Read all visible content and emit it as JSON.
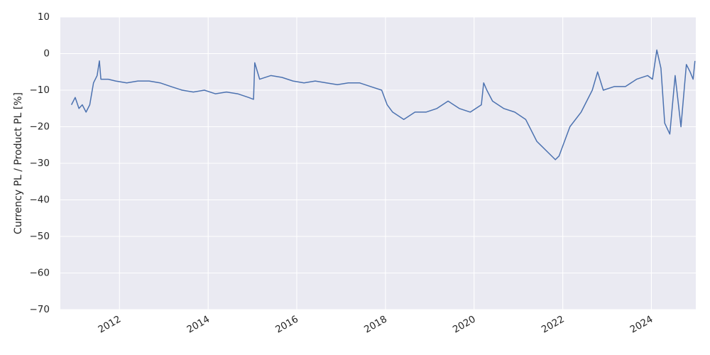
{
  "chart_data": {
    "type": "line",
    "title": "",
    "xlabel": "",
    "ylabel": "Currency PL / Product PL [%]",
    "xlim": [
      "2010-09-01",
      "2025-01-01"
    ],
    "ylim": [
      -70,
      10
    ],
    "grid": true,
    "y_ticks": [
      10,
      0,
      -10,
      -20,
      -30,
      -40,
      -50,
      -60,
      -70
    ],
    "y_tick_labels": [
      "10",
      "0",
      "−10",
      "−20",
      "−30",
      "−40",
      "−50",
      "−60",
      "−70"
    ],
    "x_ticks": [
      "2012-01-01",
      "2014-01-01",
      "2016-01-01",
      "2018-01-01",
      "2020-01-01",
      "2022-01-01",
      "2024-01-01"
    ],
    "x_tick_labels": [
      "2012",
      "2014",
      "2016",
      "2018",
      "2020",
      "2022",
      "2024"
    ],
    "colors": {
      "background": "#eaeaf2",
      "grid": "#ffffff",
      "series": "#4c72b0",
      "text": "#262626"
    },
    "series": [
      {
        "x": [
          "2010-12-01",
          "2011-01-01",
          "2011-02-01",
          "2011-03-01",
          "2011-04-01",
          "2011-05-01",
          "2011-06-01",
          "2011-07-01",
          "2011-07-20",
          "2011-08-01",
          "2011-09-01",
          "2011-10-01",
          "2011-12-01",
          "2012-03-01",
          "2012-06-01",
          "2012-09-01",
          "2012-12-01",
          "2013-03-01",
          "2013-06-01",
          "2013-09-01",
          "2013-12-01",
          "2014-03-01",
          "2014-06-01",
          "2014-09-01",
          "2014-12-01",
          "2015-01-10",
          "2015-01-20",
          "2015-03-01",
          "2015-06-01",
          "2015-09-01",
          "2015-12-01",
          "2016-03-01",
          "2016-06-01",
          "2016-09-01",
          "2016-12-01",
          "2017-03-01",
          "2017-06-01",
          "2017-09-01",
          "2017-12-01",
          "2018-01-15",
          "2018-03-01",
          "2018-06-01",
          "2018-09-01",
          "2018-12-01",
          "2019-03-01",
          "2019-06-01",
          "2019-09-01",
          "2019-12-01",
          "2020-03-01",
          "2020-03-20",
          "2020-04-15",
          "2020-06-01",
          "2020-09-01",
          "2020-12-01",
          "2021-03-01",
          "2021-06-01",
          "2021-09-01",
          "2021-11-01",
          "2021-12-01",
          "2022-03-01",
          "2022-06-01",
          "2022-09-01",
          "2022-10-15",
          "2022-12-01",
          "2023-03-01",
          "2023-06-01",
          "2023-09-01",
          "2023-12-01",
          "2024-01-10",
          "2024-02-15",
          "2024-03-20",
          "2024-04-20",
          "2024-06-01",
          "2024-07-15",
          "2024-09-01",
          "2024-10-15",
          "2024-11-15",
          "2024-12-10",
          "2024-12-25"
        ],
        "y": [
          -14,
          -12,
          -15,
          -14,
          -16,
          -14,
          -8,
          -6,
          -2,
          -7,
          -7,
          -7,
          -7.5,
          -8,
          -7.5,
          -7.5,
          -8,
          -9,
          -10,
          -10.5,
          -10,
          -11,
          -10.5,
          -11,
          -12,
          -12.5,
          -2.5,
          -7,
          -6,
          -6.5,
          -7.5,
          -8,
          -7.5,
          -8,
          -8.5,
          -8,
          -8,
          -9,
          -10,
          -14,
          -16,
          -18,
          -16,
          -16,
          -15,
          -13,
          -15,
          -16,
          -14,
          -8,
          -10,
          -13,
          -15,
          -16,
          -18,
          -24,
          -27,
          -29,
          -28,
          -20,
          -16,
          -10,
          -5,
          -10,
          -9,
          -9,
          -7,
          -6,
          -7,
          1,
          -4,
          -19,
          -22,
          -6,
          -20,
          -3,
          -5,
          -7,
          -2
        ]
      }
    ]
  }
}
